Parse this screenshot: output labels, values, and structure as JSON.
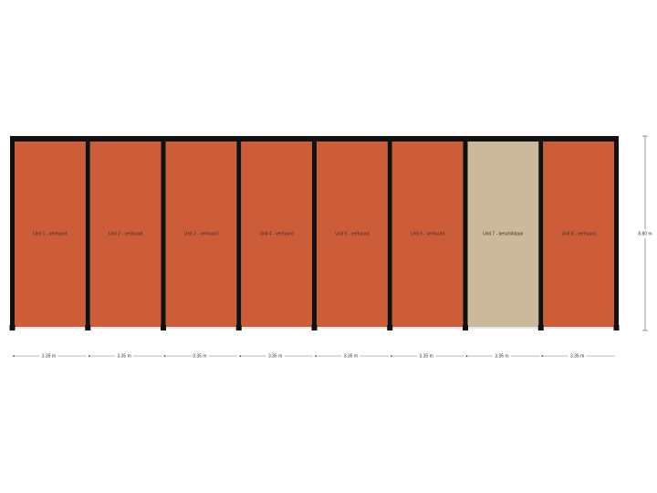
{
  "units": [
    {
      "label": "Unit 1 - verhuurd",
      "width": "3.35 m",
      "color": "#cd5c38"
    },
    {
      "label": "Unit 2 - verhuurd",
      "width": "3.35 m",
      "color": "#cd5c38"
    },
    {
      "label": "Unit 3 - verhuurd",
      "width": "3.35 m",
      "color": "#cd5c38"
    },
    {
      "label": "Unit 4 - verhuurd",
      "width": "3.35 m",
      "color": "#cd5c38"
    },
    {
      "label": "Unit 5 - verhuurd",
      "width": "3.35 m",
      "color": "#cd5c38"
    },
    {
      "label": "Unit 6 - verhuurd",
      "width": "3.35 m",
      "color": "#cd5c38"
    },
    {
      "label": "Unit 7 - beschikbaar",
      "width": "3.35 m",
      "color": "#ccb89a"
    },
    {
      "label": "Unit 8 - verhuurd",
      "width": "3.35 m",
      "color": "#cd5c38"
    }
  ],
  "depth": "8.80 m"
}
